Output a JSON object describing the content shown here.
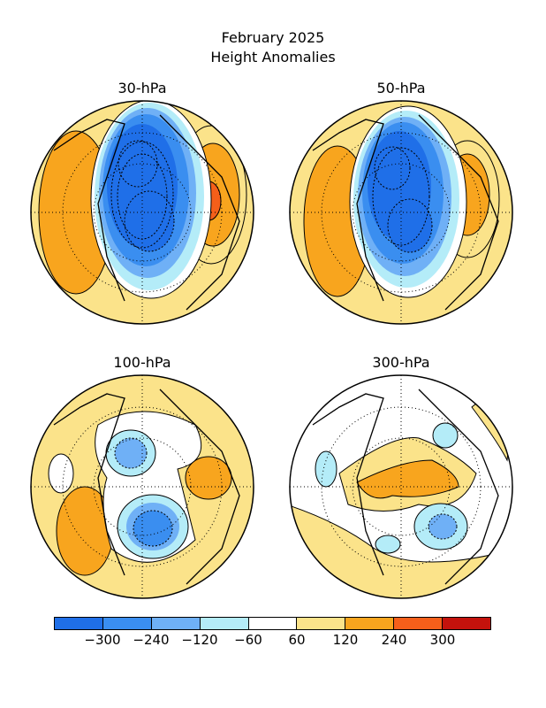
{
  "title": {
    "line1": "February 2025",
    "line2": "Height Anomalies"
  },
  "panels": [
    {
      "label": "30-hPa",
      "anomaly_pattern": "strong negative over polar cap/Canada, positive over Eurasia and north Pacific"
    },
    {
      "label": "50-hPa",
      "anomaly_pattern": "strong negative over polar cap/Canada, positive over Eurasia and north Pacific"
    },
    {
      "label": "100-hPa",
      "anomaly_pattern": "negative over Arctic and Canada, positive over Pacific and Eurasia"
    },
    {
      "label": "300-hPa",
      "anomaly_pattern": "positive over Arctic/Siberia, negative over North Atlantic"
    }
  ],
  "legend": {
    "colors": [
      "#1f6fe8",
      "#3a8ef0",
      "#6fb0f6",
      "#b4ecf8",
      "#ffffff",
      "#fbe38a",
      "#f8a51e",
      "#f55f1a",
      "#c4120c"
    ],
    "labels": [
      "−300",
      "−240",
      "−120",
      "−60",
      "60",
      "120",
      "240",
      "300"
    ]
  }
}
